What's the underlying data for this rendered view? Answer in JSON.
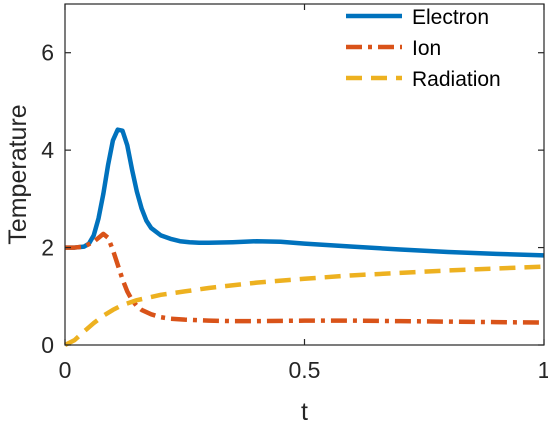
{
  "chart_data": {
    "type": "line",
    "xlabel": "t",
    "ylabel": "Temperature",
    "xlim": [
      0,
      1
    ],
    "ylim": [
      0,
      7
    ],
    "xticks": [
      0,
      0.5,
      1
    ],
    "xtick_labels": [
      "0",
      "0.5",
      "1"
    ],
    "yticks": [
      0,
      2,
      4,
      6
    ],
    "ytick_labels": [
      "0",
      "2",
      "4",
      "6"
    ],
    "grid": false,
    "legend_position": "top-right",
    "series": [
      {
        "name": "Electron",
        "color": "#0072BD",
        "style": "solid",
        "x": [
          0,
          0.02,
          0.04,
          0.05,
          0.06,
          0.07,
          0.08,
          0.09,
          0.1,
          0.11,
          0.12,
          0.13,
          0.14,
          0.15,
          0.16,
          0.17,
          0.18,
          0.2,
          0.22,
          0.24,
          0.26,
          0.28,
          0.3,
          0.35,
          0.4,
          0.45,
          0.5,
          0.6,
          0.7,
          0.8,
          0.9,
          1.0
        ],
        "y": [
          2.0,
          2.0,
          2.02,
          2.08,
          2.25,
          2.6,
          3.1,
          3.7,
          4.2,
          4.42,
          4.4,
          4.1,
          3.6,
          3.15,
          2.8,
          2.55,
          2.4,
          2.25,
          2.18,
          2.13,
          2.11,
          2.1,
          2.1,
          2.11,
          2.13,
          2.12,
          2.08,
          2.02,
          1.96,
          1.91,
          1.87,
          1.84
        ]
      },
      {
        "name": "Ion",
        "color": "#D95319",
        "style": "dashdot",
        "x": [
          0,
          0.02,
          0.04,
          0.06,
          0.07,
          0.08,
          0.09,
          0.1,
          0.11,
          0.12,
          0.13,
          0.14,
          0.15,
          0.16,
          0.18,
          0.2,
          0.22,
          0.25,
          0.3,
          0.35,
          0.4,
          0.5,
          0.6,
          0.7,
          0.8,
          0.9,
          1.0
        ],
        "y": [
          2.0,
          2.0,
          2.02,
          2.12,
          2.2,
          2.28,
          2.2,
          1.95,
          1.65,
          1.35,
          1.1,
          0.92,
          0.8,
          0.72,
          0.63,
          0.57,
          0.54,
          0.52,
          0.5,
          0.49,
          0.49,
          0.5,
          0.5,
          0.49,
          0.48,
          0.47,
          0.46
        ]
      },
      {
        "name": "Radiation",
        "color": "#EDB120",
        "style": "dashed",
        "x": [
          0,
          0.02,
          0.04,
          0.06,
          0.08,
          0.1,
          0.12,
          0.15,
          0.2,
          0.25,
          0.3,
          0.4,
          0.5,
          0.6,
          0.7,
          0.8,
          0.9,
          1.0
        ],
        "y": [
          0.0,
          0.1,
          0.28,
          0.45,
          0.6,
          0.72,
          0.82,
          0.92,
          1.03,
          1.1,
          1.17,
          1.28,
          1.36,
          1.43,
          1.48,
          1.53,
          1.57,
          1.61
        ]
      }
    ]
  }
}
